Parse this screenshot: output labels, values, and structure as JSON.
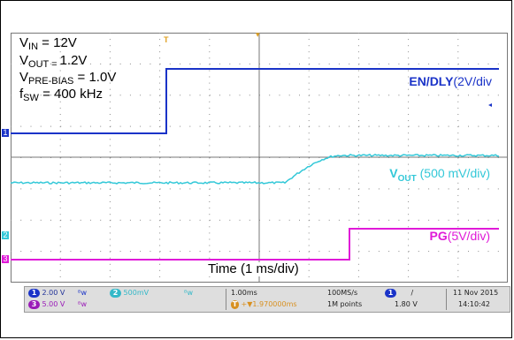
{
  "annotations": {
    "vin": {
      "prefix": "V",
      "sub": "IN",
      "suffix": " = 12V"
    },
    "vout": {
      "prefix": "V",
      "sub": "OUT = ",
      "suffix": "1.2V"
    },
    "vprebias": {
      "prefix": "V",
      "sub": "PRE-BIAS",
      "suffix": " = 1.0V"
    },
    "fsw": {
      "prefix": "f",
      "sub": "SW",
      "suffix": " = 400 kHz"
    },
    "time_div": "Time (1 ms/div)"
  },
  "channels": [
    {
      "id": "en_dly",
      "label_bold": "EN/DLY",
      "label_norm": "(2V/div",
      "color": "#1a33c8"
    },
    {
      "id": "vout",
      "label_bold": "V",
      "label_sub": "OUT",
      "label_norm": " (500 mV/div)",
      "color": "#33c8d8"
    },
    {
      "id": "pg",
      "label_bold": "PG",
      "label_norm": "(5V/div)",
      "color": "#e01ad8"
    }
  ],
  "markers": {
    "ch1": "1",
    "ch2": "2",
    "ch3": "3",
    "trigger": "T"
  },
  "status": {
    "ch1_scale": "2.00 V",
    "ch3_scale": "5.00 V",
    "ch2_scale": "500mV",
    "bw1": "ᴮw",
    "bw2": "ᴮw",
    "bw3": "ᴮw",
    "timebase": "1.00ms",
    "position": "+▼1.970000ms",
    "sample_rate": "100MS/s",
    "record_length": "1M points",
    "trig_channel": "1",
    "trig_slope": "/",
    "trig_level": "1.80 V",
    "date": "11 Nov 2015",
    "time": "14:10:42"
  },
  "colors": {
    "ch1": "#1a33c8",
    "ch2": "#33c8d8",
    "ch3": "#e01ad8",
    "grid": "#8a8a8a",
    "trigger_marker": "#e0a020"
  }
}
